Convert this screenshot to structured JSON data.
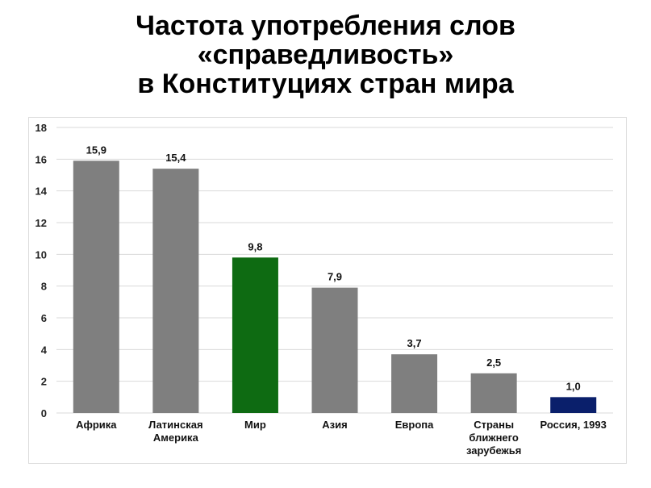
{
  "title": {
    "line1": "Частота употребления слов",
    "line2": "«справедливость»",
    "line3": "в Конституциях стран мира"
  },
  "chart_data": {
    "type": "bar",
    "categories": [
      [
        "Африка"
      ],
      [
        "Латинская",
        "Америка"
      ],
      [
        "Мир"
      ],
      [
        "Азия"
      ],
      [
        "Европа"
      ],
      [
        "Страны",
        "ближнего",
        "зарубежья"
      ],
      [
        "Россия, 1993"
      ]
    ],
    "values": [
      15.9,
      15.4,
      9.8,
      7.9,
      3.7,
      2.5,
      1.0
    ],
    "value_labels": [
      "15,9",
      "15,4",
      "9,8",
      "7,9",
      "3,7",
      "2,5",
      "1,0"
    ],
    "colors": [
      "#7f7f7f",
      "#7f7f7f",
      "#0e6b12",
      "#7f7f7f",
      "#7f7f7f",
      "#7f7f7f",
      "#0a1f6b"
    ],
    "yticks": [
      0,
      2,
      4,
      6,
      8,
      10,
      12,
      14,
      16,
      18
    ],
    "ylim": [
      0,
      18
    ],
    "grid": true,
    "gridline_color": "#d9d9d9"
  }
}
